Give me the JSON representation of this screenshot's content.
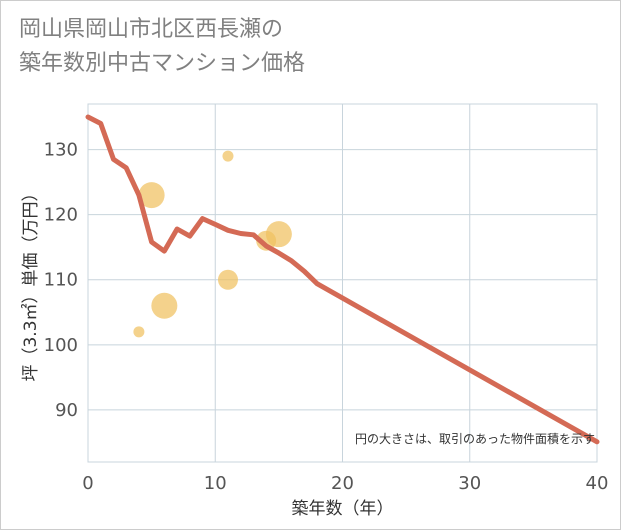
{
  "header": {
    "title_line1": "岡山県岡山市北区西長瀬の",
    "title_line2": "築年数別中古マンション価格"
  },
  "chart_data": {
    "type": "scatter+line",
    "title": "岡山県岡山市北区西長瀬の築年数別中古マンション価格",
    "xlabel": "築年数（年）",
    "ylabel": "坪（3.3㎡）単価（万円）",
    "xlim": [
      0,
      40
    ],
    "ylim": [
      82,
      137
    ],
    "xticks": [
      0,
      10,
      20,
      30,
      40
    ],
    "yticks": [
      90,
      100,
      110,
      120,
      130
    ],
    "annotation": "円の大きさは、取引のあった物件面積を示す",
    "colors": {
      "bubble": "#f0c060",
      "line": "#d46a55",
      "grid": "#c8d4dc"
    },
    "bubbles": [
      {
        "x": 4,
        "y": 102,
        "size": 1
      },
      {
        "x": 5,
        "y": 123,
        "size": 3
      },
      {
        "x": 6,
        "y": 106,
        "size": 3
      },
      {
        "x": 11,
        "y": 129,
        "size": 1
      },
      {
        "x": 11,
        "y": 110,
        "size": 2
      },
      {
        "x": 14,
        "y": 116,
        "size": 2
      },
      {
        "x": 15,
        "y": 117,
        "size": 3
      }
    ],
    "trend": {
      "x": [
        0,
        1,
        2,
        3,
        4,
        5,
        6,
        7,
        8,
        9,
        10,
        11,
        12,
        13,
        14,
        15,
        16,
        17,
        18,
        40
      ],
      "y": [
        135,
        134,
        128.5,
        127.2,
        123,
        115.8,
        114.4,
        117.8,
        116.7,
        119.4,
        118.5,
        117.6,
        117.1,
        116.9,
        115.2,
        114.1,
        112.9,
        111.3,
        109.4,
        85.1
      ]
    }
  }
}
